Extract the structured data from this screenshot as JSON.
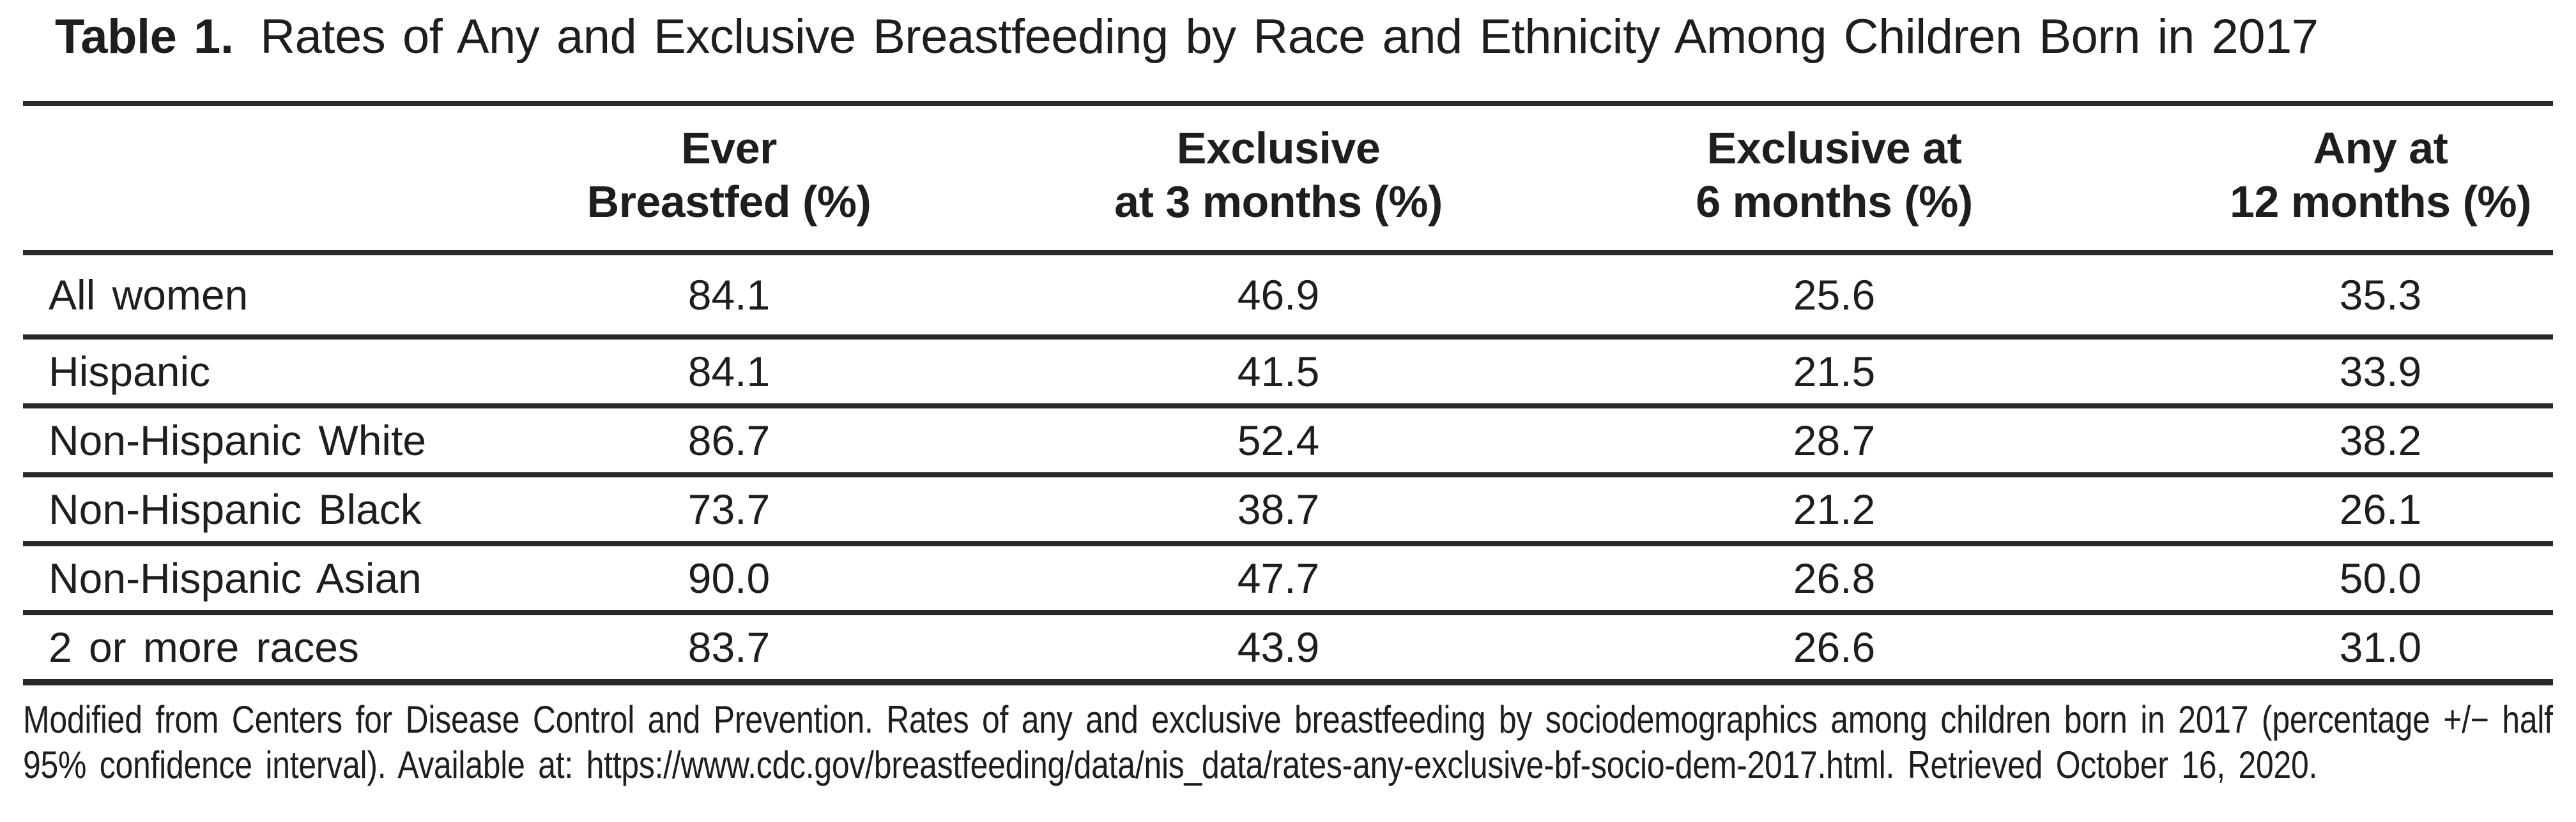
{
  "page": {
    "background_color": "#ffffff",
    "text_color": "#1f1d1e",
    "rule_color": "#2a282a"
  },
  "title": {
    "label": "Table 1.",
    "text": "Rates of Any and Exclusive Breastfeeding by Race and Ethnicity Among Children Born in 2017"
  },
  "table": {
    "column_headers": [
      {
        "line1": "Ever",
        "line2": "Breastfed (%)"
      },
      {
        "line1": "Exclusive",
        "line2": "at 3 months (%)"
      },
      {
        "line1": "Exclusive at",
        "line2": "6 months (%)"
      },
      {
        "line1": "Any at",
        "line2": "12 months (%)"
      }
    ],
    "rows": [
      {
        "label": "All women",
        "values": [
          "84.1",
          "46.9",
          "25.6",
          "35.3"
        ]
      },
      {
        "label": "Hispanic",
        "values": [
          "84.1",
          "41.5",
          "21.5",
          "33.9"
        ]
      },
      {
        "label": "Non-Hispanic White",
        "values": [
          "86.7",
          "52.4",
          "28.7",
          "38.2"
        ]
      },
      {
        "label": "Non-Hispanic Black",
        "values": [
          "73.7",
          "38.7",
          "21.2",
          "26.1"
        ]
      },
      {
        "label": "Non-Hispanic Asian",
        "values": [
          "90.0",
          "47.7",
          "26.8",
          "50.0"
        ]
      },
      {
        "label": "2 or more races",
        "values": [
          "83.7",
          "43.9",
          "26.6",
          "31.0"
        ]
      }
    ]
  },
  "footnote": {
    "line1": "Modified from Centers for Disease Control and Prevention. Rates of any and exclusive breastfeeding by sociodemographics among children born in 2017 (percentage +/− half",
    "line2": "95% confidence interval). Available at: https://www.cdc.gov/breastfeeding/data/nis_data/rates-any-exclusive-bf-socio-dem-2017.html. Retrieved October 16, 2020."
  }
}
